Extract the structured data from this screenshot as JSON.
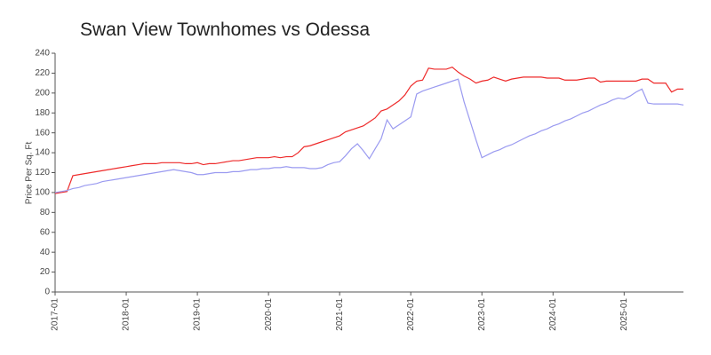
{
  "chart_data": {
    "type": "line",
    "title": "Swan View Townhomes vs Odessa",
    "y_label": "Price Per Sq. Ft",
    "categories": [
      "2017-01",
      null,
      null,
      null,
      null,
      null,
      null,
      null,
      null,
      null,
      null,
      null,
      "2018-01",
      null,
      null,
      null,
      null,
      null,
      null,
      null,
      null,
      null,
      null,
      null,
      "2019-01",
      null,
      null,
      null,
      null,
      null,
      null,
      null,
      null,
      null,
      null,
      null,
      "2020-01",
      null,
      null,
      null,
      null,
      null,
      null,
      null,
      null,
      null,
      null,
      null,
      "2021-01",
      null,
      null,
      null,
      null,
      null,
      null,
      null,
      null,
      null,
      null,
      null,
      "2022-01",
      null,
      null,
      null,
      null,
      null,
      null,
      null,
      null,
      null,
      null,
      null,
      "2023-01",
      null,
      null,
      null,
      null,
      null,
      null,
      null,
      null,
      null,
      null,
      null,
      "2024-01",
      null,
      null,
      null,
      null,
      null,
      null,
      null,
      null,
      null,
      null,
      null,
      "2025-01",
      null,
      null,
      null,
      null,
      null,
      null,
      null,
      null,
      null,
      null
    ],
    "series": [
      {
        "color": "#ee2a2a",
        "values": [
          99,
          100,
          101,
          117,
          118,
          119,
          120,
          121,
          122,
          123,
          124,
          125,
          126,
          127,
          128,
          129,
          129,
          129,
          130,
          130,
          130,
          130,
          129,
          129,
          130,
          128,
          129,
          129,
          130,
          131,
          132,
          132,
          133,
          134,
          135,
          135,
          135,
          136,
          135,
          136,
          136,
          140,
          146,
          147,
          149,
          151,
          153,
          155,
          157,
          161,
          163,
          165,
          167,
          171,
          175,
          182,
          184,
          188,
          192,
          198,
          207,
          212,
          213,
          225,
          224,
          224,
          224,
          226,
          221,
          217,
          214,
          210,
          212,
          213,
          216,
          214,
          212,
          214,
          215,
          216,
          216,
          216,
          216,
          215,
          215,
          215,
          213,
          213,
          213,
          214,
          215,
          215,
          211,
          212,
          212,
          212,
          212,
          212,
          212,
          214,
          214,
          210,
          210,
          210,
          201,
          204,
          204
        ]
      },
      {
        "color": "#9a9af0",
        "values": [
          100,
          101,
          102,
          104,
          105,
          107,
          108,
          109,
          111,
          112,
          113,
          114,
          115,
          116,
          117,
          118,
          119,
          120,
          121,
          122,
          123,
          122,
          121,
          120,
          118,
          118,
          119,
          120,
          120,
          120,
          121,
          121,
          122,
          123,
          123,
          124,
          124,
          125,
          125,
          126,
          125,
          125,
          125,
          124,
          124,
          125,
          128,
          130,
          131,
          137,
          144,
          149,
          142,
          134,
          144,
          154,
          173,
          164,
          168,
          172,
          176,
          199,
          202,
          204,
          206,
          208,
          210,
          212,
          214,
          191,
          172,
          153,
          135,
          138,
          141,
          143,
          146,
          148,
          151,
          154,
          157,
          159,
          162,
          164,
          167,
          169,
          172,
          174,
          177,
          180,
          182,
          185,
          188,
          190,
          193,
          195,
          194,
          197,
          201,
          204,
          190,
          189,
          189,
          189,
          189,
          189,
          188
        ]
      }
    ],
    "ylim": [
      0,
      240
    ],
    "yticks": [
      0,
      20,
      40,
      60,
      80,
      100,
      120,
      140,
      160,
      180,
      200,
      220,
      240
    ],
    "grid": false
  }
}
